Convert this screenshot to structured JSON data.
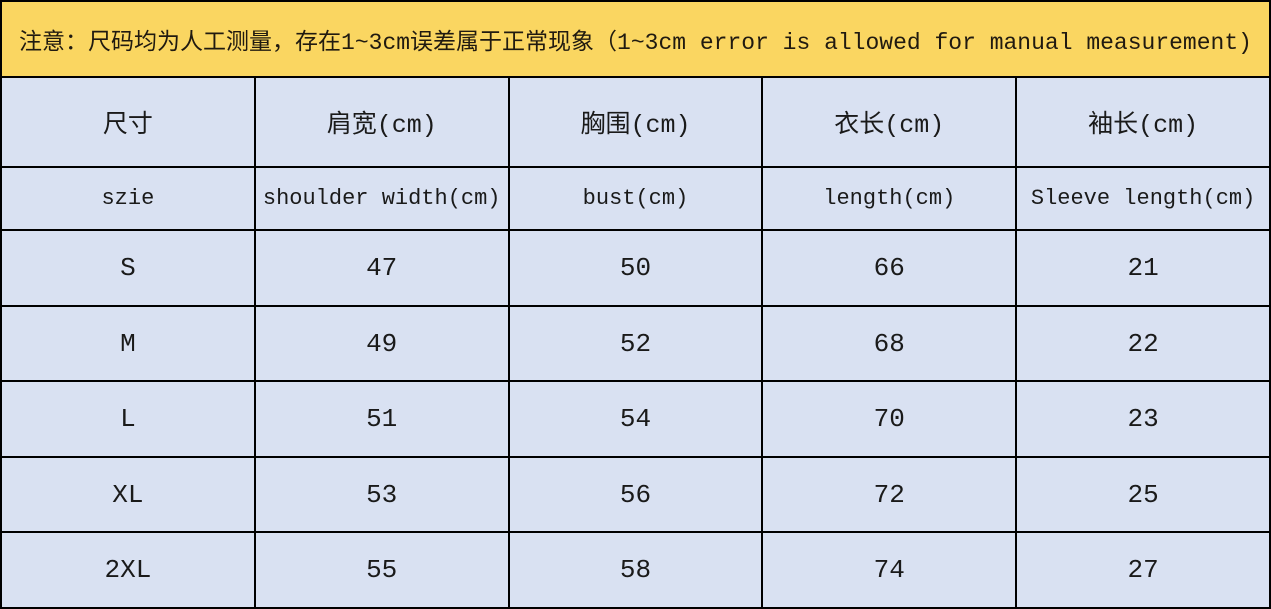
{
  "banner": {
    "text": "注意：尺码均为人工测量，存在1~3cm误差属于正常现象（1~3cm error is allowed for manual measurement)",
    "bg_color": "#FAD661",
    "text_color": "#201A10"
  },
  "table": {
    "cell_bg_color": "#D9E1F2",
    "border_color": "#000000",
    "columns_cn": [
      "尺寸",
      "肩宽(cm)",
      "胸围(cm)",
      "衣长(cm)",
      "袖长(cm)"
    ],
    "columns_en": [
      "szie",
      "shoulder width(cm)",
      "bust(cm)",
      "length(cm)",
      "Sleeve length(cm)"
    ],
    "rows": [
      [
        "S",
        "47",
        "50",
        "66",
        "21"
      ],
      [
        "M",
        "49",
        "52",
        "68",
        "22"
      ],
      [
        "L",
        "51",
        "54",
        "70",
        "23"
      ],
      [
        "XL",
        "53",
        "56",
        "72",
        "25"
      ],
      [
        "2XL",
        "55",
        "58",
        "74",
        "27"
      ]
    ]
  }
}
